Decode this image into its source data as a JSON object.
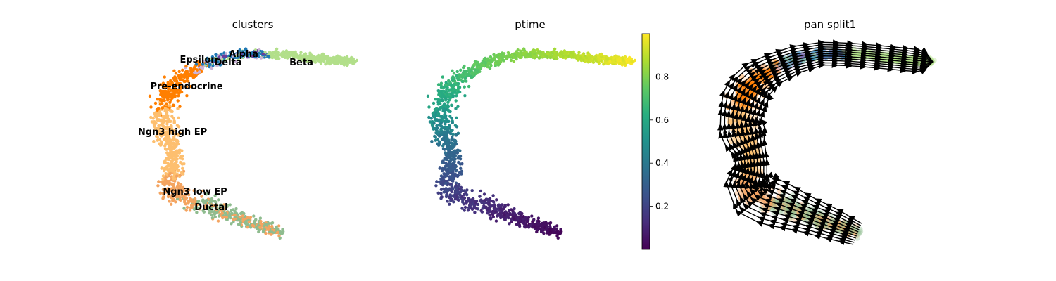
{
  "chart_data": [
    {
      "type": "scatter",
      "title": "clusters",
      "xlabel": "",
      "ylabel": "",
      "legend": "on data",
      "categories": [
        {
          "name": "Ductal",
          "color": "#8fbc8f"
        },
        {
          "name": "Ngn3 low EP",
          "color": "#f4a460"
        },
        {
          "name": "Ngn3 high EP",
          "color": "#fdbf6f"
        },
        {
          "name": "Pre-endocrine",
          "color": "#ff7f00"
        },
        {
          "name": "Beta",
          "color": "#b2df8a"
        },
        {
          "name": "Alpha",
          "color": "#1f78b4"
        },
        {
          "name": "Delta",
          "color": "#6a3d9a"
        },
        {
          "name": "Epsilon",
          "color": "#cab2d6"
        }
      ]
    },
    {
      "type": "scatter",
      "title": "ptime",
      "xlabel": "",
      "ylabel": "",
      "colorbar": {
        "colormap": "viridis",
        "ticks": [
          "0.2",
          "0.4",
          "0.6",
          "0.8"
        ],
        "tick_values": [
          0.2,
          0.4,
          0.6,
          0.8
        ],
        "range": [
          0.0,
          1.0
        ]
      }
    },
    {
      "type": "scatter",
      "title": "pan split1",
      "xlabel": "",
      "ylabel": "",
      "overlay": "velocity streamlines"
    }
  ]
}
